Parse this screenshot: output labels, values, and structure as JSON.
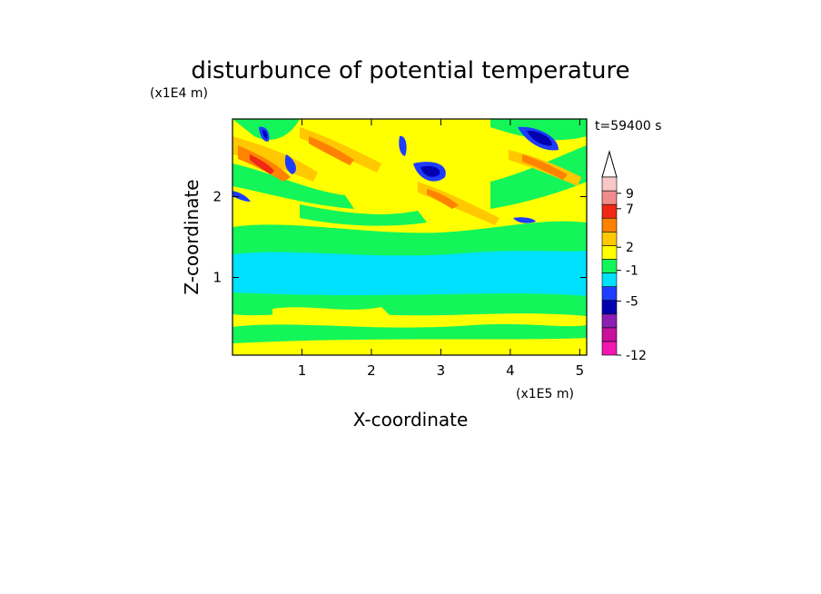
{
  "chart_data": {
    "type": "contour",
    "title": "disturbunce of potential temperature",
    "xlabel": "X-coordinate",
    "ylabel": "Z-coordinate",
    "x_unit": "(x1E5 m)",
    "y_unit": "(x1E4 m)",
    "annotation": "t=59400 s",
    "xlim": [
      0,
      5.1
    ],
    "ylim": [
      0.04,
      2.96
    ],
    "xticks": [
      1,
      2,
      3,
      4,
      5
    ],
    "yticks": [
      1,
      2
    ],
    "colorbar": {
      "clim": [
        -12,
        11.1
      ],
      "ticks": [
        -12,
        -5,
        -1,
        2,
        7,
        9
      ],
      "colors": [
        "#f018b0",
        "#c8109c",
        "#8c1eb4",
        "#0000b0",
        "#1e3cff",
        "#00e0ff",
        "#14f55a",
        "#ffff00",
        "#ffc800",
        "#ff8200",
        "#f02814",
        "#f08c8c",
        "#f8c8c8"
      ]
    }
  }
}
